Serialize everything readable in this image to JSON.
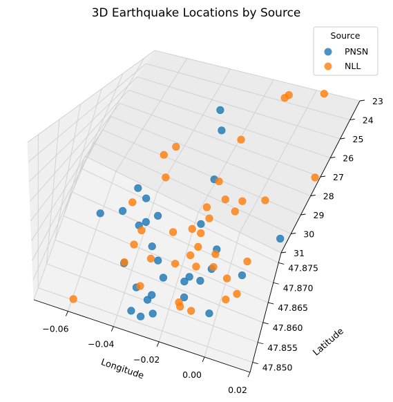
{
  "chart_data": {
    "type": "scatter",
    "title": "3D Earthquake Locations by Source",
    "xlabel": "Longitude",
    "ylabel": "Latitude",
    "zlabel": "",
    "xlim": [
      -0.075,
      0.02
    ],
    "ylim": [
      47.8475,
      47.8775
    ],
    "zlim": [
      31,
      23
    ],
    "x_ticks": [
      -0.06,
      -0.04,
      -0.02,
      0.0,
      0.02
    ],
    "x_tick_labels": [
      "−0.06",
      "−0.04",
      "−0.02",
      "0.00",
      "0.02"
    ],
    "y_ticks": [
      47.85,
      47.855,
      47.86,
      47.865,
      47.87,
      47.875
    ],
    "y_tick_labels": [
      "47.850",
      "47.855",
      "47.860",
      "47.865",
      "47.870",
      "47.875"
    ],
    "z_ticks": [
      23,
      24,
      25,
      26,
      27,
      28,
      29,
      30,
      31
    ],
    "z_tick_labels": [
      "23",
      "24",
      "25",
      "26",
      "27",
      "28",
      "29",
      "30",
      "31"
    ],
    "grid": true,
    "legend": {
      "title": "Source",
      "placement": "top-right"
    },
    "colors": {
      "PNSN": "#1f77b4",
      "NLL": "#ff7f0e"
    },
    "series": [
      {
        "name": "PNSN",
        "color": "#1f77b4",
        "points": [
          {
            "x": -0.03,
            "y": 47.8705,
            "z": 23.5
          },
          {
            "x": -0.025,
            "y": 47.8692,
            "z": 24.2
          },
          {
            "x": -0.018,
            "y": 47.8652,
            "z": 25.8
          },
          {
            "x": -0.045,
            "y": 47.8608,
            "z": 26.6
          },
          {
            "x": -0.041,
            "y": 47.8612,
            "z": 27.1
          },
          {
            "x": -0.034,
            "y": 47.8605,
            "z": 27.6
          },
          {
            "x": -0.038,
            "y": 47.8598,
            "z": 28.0
          },
          {
            "x": -0.047,
            "y": 47.8577,
            "z": 27.3
          },
          {
            "x": -0.056,
            "y": 47.8573,
            "z": 27.8
          },
          {
            "x": -0.041,
            "y": 47.8604,
            "z": 28.5
          },
          {
            "x": -0.018,
            "y": 47.8662,
            "z": 28.7
          },
          {
            "x": -0.033,
            "y": 47.8591,
            "z": 29.0
          },
          {
            "x": -0.029,
            "y": 47.8582,
            "z": 29.4
          },
          {
            "x": -0.042,
            "y": 47.8558,
            "z": 29.6
          },
          {
            "x": -0.025,
            "y": 47.857,
            "z": 29.9
          },
          {
            "x": -0.035,
            "y": 47.8548,
            "z": 30.4
          },
          {
            "x": -0.028,
            "y": 47.8548,
            "z": 30.5
          },
          {
            "x": -0.029,
            "y": 47.8535,
            "z": 30.5
          },
          {
            "x": -0.015,
            "y": 47.8596,
            "z": 30.0
          },
          {
            "x": -0.025,
            "y": 47.8511,
            "z": 30.5
          },
          {
            "x": -0.035,
            "y": 47.8519,
            "z": 31.0
          },
          {
            "x": -0.014,
            "y": 47.855,
            "z": 30.0
          },
          {
            "x": -0.016,
            "y": 47.8575,
            "z": 29.8
          },
          {
            "x": -0.01,
            "y": 47.8593,
            "z": 29.9
          },
          {
            "x": -0.007,
            "y": 47.8615,
            "z": 29.6
          },
          {
            "x": -0.008,
            "y": 47.8655,
            "z": 29.5
          },
          {
            "x": -0.002,
            "y": 47.854,
            "z": 30.1
          },
          {
            "x": 0.006,
            "y": 47.8631,
            "z": 29.7
          },
          {
            "x": 0.016,
            "y": 47.8745,
            "z": 29.8
          },
          {
            "x": -0.031,
            "y": 47.8525,
            "z": 31.3
          }
        ]
      },
      {
        "name": "NLL",
        "color": "#ff7f0e",
        "points": [
          {
            "x": 0.004,
            "y": 47.8772,
            "z": 23.0
          },
          {
            "x": -0.011,
            "y": 47.879,
            "z": 24.0
          },
          {
            "x": -0.012,
            "y": 47.879,
            "z": 24.2
          },
          {
            "x": -0.018,
            "y": 47.873,
            "z": 25.4
          },
          {
            "x": -0.04,
            "y": 47.868,
            "z": 25.6
          },
          {
            "x": -0.043,
            "y": 47.867,
            "z": 26.0
          },
          {
            "x": 0.018,
            "y": 47.877,
            "z": 27.0
          },
          {
            "x": -0.04,
            "y": 47.8692,
            "z": 27.8
          },
          {
            "x": -0.019,
            "y": 47.874,
            "z": 28.2
          },
          {
            "x": -0.013,
            "y": 47.8718,
            "z": 28.4
          },
          {
            "x": -0.007,
            "y": 47.871,
            "z": 28.6
          },
          {
            "x": -0.016,
            "y": 47.8695,
            "z": 29.1
          },
          {
            "x": -0.006,
            "y": 47.874,
            "z": 28.7
          },
          {
            "x": -0.048,
            "y": 47.864,
            "z": 28.4
          },
          {
            "x": -0.021,
            "y": 47.8668,
            "z": 29.3
          },
          {
            "x": -0.04,
            "y": 47.8614,
            "z": 29.0
          },
          {
            "x": -0.019,
            "y": 47.8715,
            "z": 29.1
          },
          {
            "x": 0.003,
            "y": 47.8769,
            "z": 28.9
          },
          {
            "x": -0.017,
            "y": 47.8678,
            "z": 29.6
          },
          {
            "x": -0.041,
            "y": 47.8595,
            "z": 29.4
          },
          {
            "x": -0.028,
            "y": 47.865,
            "z": 29.4
          },
          {
            "x": -0.016,
            "y": 47.866,
            "z": 29.9
          },
          {
            "x": -0.008,
            "y": 47.8668,
            "z": 30.1
          },
          {
            "x": 0.006,
            "y": 47.8685,
            "z": 30.2
          },
          {
            "x": -0.014,
            "y": 47.863,
            "z": 30.2
          },
          {
            "x": -0.033,
            "y": 47.8602,
            "z": 30.0
          },
          {
            "x": -0.018,
            "y": 47.8652,
            "z": 30.3
          },
          {
            "x": -0.023,
            "y": 47.863,
            "z": 30.5
          },
          {
            "x": -0.043,
            "y": 47.8578,
            "z": 30.1
          },
          {
            "x": -0.034,
            "y": 47.8561,
            "z": 30.6
          },
          {
            "x": -0.007,
            "y": 47.8668,
            "z": 30.8
          },
          {
            "x": 0.0,
            "y": 47.8656,
            "z": 30.8
          },
          {
            "x": -0.017,
            "y": 47.858,
            "z": 31.2
          },
          {
            "x": -0.016,
            "y": 47.8572,
            "z": 31.2
          },
          {
            "x": -0.011,
            "y": 47.8572,
            "z": 31.2
          },
          {
            "x": 0.006,
            "y": 47.864,
            "z": 31.0
          },
          {
            "x": 0.002,
            "y": 47.8626,
            "z": 31.2
          },
          {
            "x": -0.06,
            "y": 47.8509,
            "z": 31.2
          }
        ]
      }
    ]
  }
}
